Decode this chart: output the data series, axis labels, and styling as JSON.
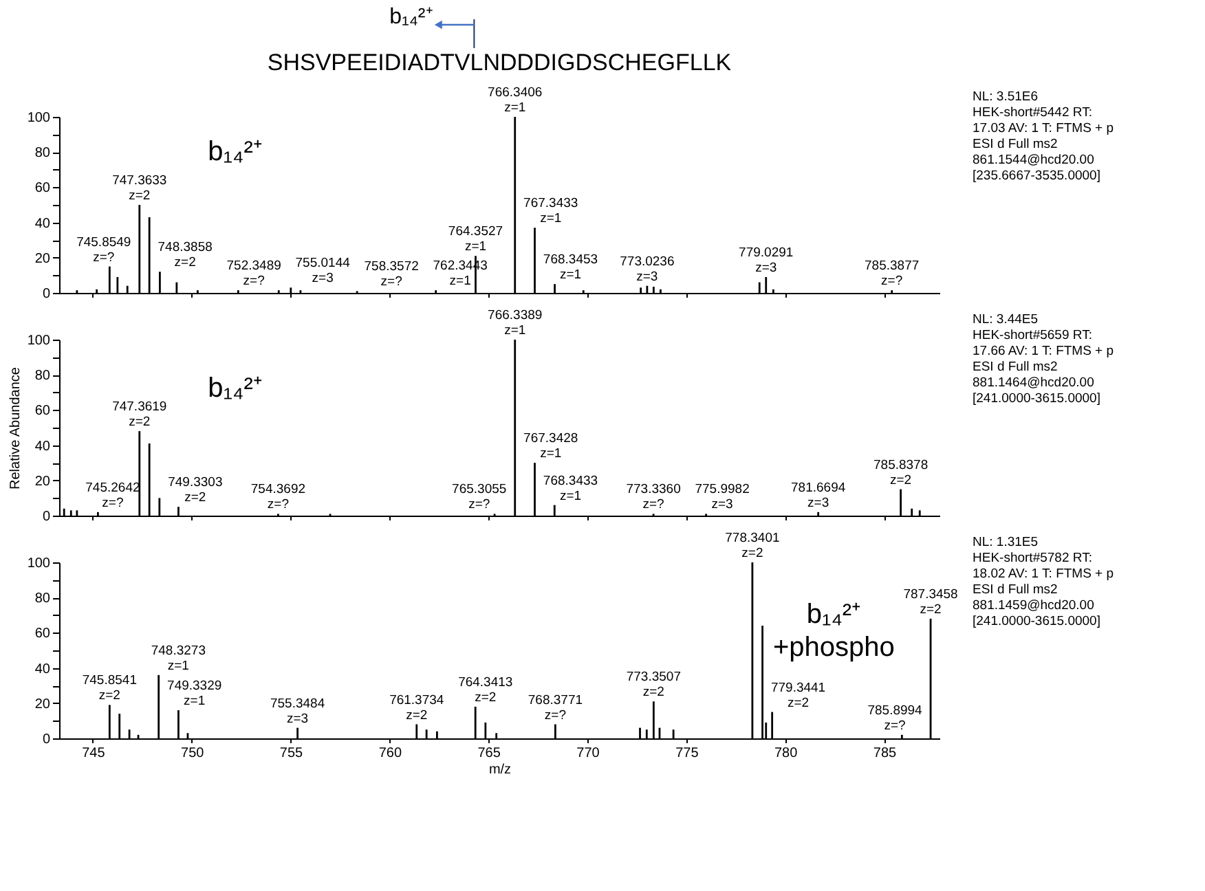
{
  "chart_data": [
    {
      "type": "bar",
      "title": "SHSVPEEIDIADTVLNDDDIGDSCHEGFLLK",
      "subtitle": "b₁₄²⁺",
      "color": "#000000",
      "grid": false,
      "tick_labels": "y",
      "xlim": [
        743.3,
        787.8
      ],
      "xticks": [
        745,
        750,
        755,
        760,
        765,
        770,
        775,
        780,
        785
      ],
      "ylim": [
        0,
        100
      ],
      "yticks": [
        0,
        {
          "value": 10,
          "label": null
        },
        20,
        {
          "value": 30,
          "label": null
        },
        40,
        {
          "value": 50,
          "label": null
        },
        60,
        {
          "value": 70,
          "label": null
        },
        80,
        {
          "value": 90,
          "label": null
        },
        100
      ],
      "x": [
        744.2,
        745.2,
        745.85,
        746.25,
        746.75,
        747.36,
        747.86,
        748.39,
        749.24,
        750.3,
        752.35,
        754.4,
        755.01,
        755.5,
        758.36,
        762.34,
        764.35,
        766.34,
        767.34,
        768.35,
        769.8,
        772.7,
        773.02,
        773.35,
        773.7,
        778.7,
        779.03,
        779.4,
        785.39
      ],
      "values": [
        1.5,
        2,
        15,
        9,
        4,
        50,
        43,
        12,
        6,
        1.5,
        1.5,
        1.5,
        3,
        1.5,
        1,
        1.5,
        21,
        100,
        37,
        5,
        1.5,
        3,
        4,
        3.5,
        2,
        6,
        9,
        2,
        1.5
      ],
      "annotations": [
        "NL: 3.51E6\nHEK-short#5442  RT:\n17.03  AV: 1 T: FTMS + p\nESI d Full ms2\n861.1544@hcd20.00\n[235.6667-3535.0000]",
        "b₁₄²⁺",
        {
          "text": "745.8549\nz=?",
          "x": 745.85,
          "y": 15
        },
        {
          "text": "747.3633\nz=2",
          "x": 747.36,
          "y": 50
        },
        {
          "text": "748.3858\nz=2",
          "x": 748.39,
          "y": 12
        },
        {
          "text": "752.3489\nz=?",
          "x": 752.35,
          "y": 1.5
        },
        {
          "text": "755.0144\nz=3",
          "x": 755.01,
          "y": 3
        },
        {
          "text": "758.3572\nz=?",
          "x": 758.36,
          "y": 1
        },
        {
          "text": "762.3443\nz=1",
          "x": 762.34,
          "y": 1.5
        },
        {
          "text": "764.3527\nz=1",
          "x": 764.35,
          "y": 21
        },
        {
          "text": "766.3406\nz=1",
          "x": 766.34,
          "y": 100
        },
        {
          "text": "767.3433\nz=1",
          "x": 767.34,
          "y": 37
        },
        {
          "text": "768.3453\nz=1",
          "x": 768.35,
          "y": 5
        },
        {
          "text": "773.0236\nz=3",
          "x": 773.02,
          "y": 4
        },
        {
          "text": "779.0291\nz=3",
          "x": 779.03,
          "y": 9
        },
        {
          "text": "785.3877\nz=?",
          "x": 785.39,
          "y": 1.5
        }
      ]
    },
    {
      "type": "bar",
      "ylabel": "Relative Abundance",
      "color": "#000000",
      "grid": false,
      "tick_labels": "y",
      "xlim": [
        743.3,
        787.8
      ],
      "xticks": [
        745,
        750,
        755,
        760,
        765,
        770,
        775,
        780,
        785
      ],
      "ylim": [
        0,
        100
      ],
      "yticks": [
        0,
        {
          "value": 10,
          "label": null
        },
        20,
        {
          "value": 30,
          "label": null
        },
        40,
        {
          "value": 50,
          "label": null
        },
        60,
        {
          "value": 70,
          "label": null
        },
        80,
        {
          "value": 90,
          "label": null
        },
        100
      ],
      "x": [
        743.55,
        743.9,
        744.2,
        745.26,
        747.36,
        747.86,
        748.37,
        749.33,
        754.37,
        757.0,
        765.31,
        766.34,
        767.34,
        768.34,
        773.34,
        776.0,
        781.67,
        785.84,
        786.4,
        786.8
      ],
      "values": [
        4,
        3,
        3,
        2,
        48,
        41,
        10,
        5,
        1,
        1,
        1,
        100,
        30,
        6,
        1,
        1,
        2,
        15,
        4,
        3
      ],
      "annotations": [
        "NL: 3.44E5\nHEK-short#5659  RT:\n17.66  AV: 1 T: FTMS + p\nESI d Full ms2\n881.1464@hcd20.00\n[241.0000-3615.0000]",
        "b₁₄²⁺",
        {
          "text": "745.2642\nz=?",
          "x": 745.26,
          "y": 2
        },
        {
          "text": "747.3619\nz=2",
          "x": 747.36,
          "y": 48
        },
        {
          "text": "749.3303\nz=2",
          "x": 749.33,
          "y": 5
        },
        {
          "text": "754.3692\nz=?",
          "x": 754.37,
          "y": 1
        },
        {
          "text": "765.3055\nz=?",
          "x": 765.31,
          "y": 1
        },
        {
          "text": "766.3389\nz=1",
          "x": 766.34,
          "y": 100
        },
        {
          "text": "767.3428\nz=1",
          "x": 767.34,
          "y": 30
        },
        {
          "text": "768.3433\nz=1",
          "x": 768.34,
          "y": 6
        },
        {
          "text": "773.3360\nz=?",
          "x": 773.34,
          "y": 1
        },
        {
          "text": "775.9982\nz=3",
          "x": 776.0,
          "y": 1
        },
        {
          "text": "781.6694\nz=3",
          "x": 781.67,
          "y": 2
        },
        {
          "text": "785.8378\nz=2",
          "x": 785.84,
          "y": 15
        }
      ]
    },
    {
      "type": "bar",
      "xlabel": "m/z",
      "color": "#000000",
      "grid": false,
      "xlim": [
        743.3,
        787.8
      ],
      "xticks": [
        745,
        750,
        755,
        760,
        765,
        770,
        775,
        780,
        785
      ],
      "ylim": [
        0,
        100
      ],
      "yticks": [
        0,
        {
          "value": 10,
          "label": null
        },
        20,
        {
          "value": 30,
          "label": null
        },
        40,
        {
          "value": 50,
          "label": null
        },
        60,
        {
          "value": 70,
          "label": null
        },
        80,
        {
          "value": 90,
          "label": null
        },
        100
      ],
      "x": [
        745.85,
        746.35,
        746.85,
        747.3,
        748.33,
        749.33,
        749.8,
        755.35,
        761.37,
        761.87,
        762.4,
        764.34,
        764.85,
        765.4,
        768.38,
        772.66,
        773.0,
        773.35,
        773.65,
        774.35,
        778.34,
        778.85,
        779.03,
        779.34,
        785.9,
        787.35
      ],
      "values": [
        19,
        14,
        5,
        2,
        36,
        16,
        3,
        6,
        8,
        5,
        4,
        18,
        9,
        3,
        8,
        6,
        5,
        21,
        6,
        5,
        100,
        64,
        9,
        15,
        2,
        68
      ],
      "annotations": [
        "NL: 1.31E5\nHEK-short#5782  RT:\n18.02  AV: 1 T: FTMS + p\nESI d Full ms2\n881.1459@hcd20.00\n[241.0000-3615.0000]",
        "b₁₄²⁺\n+phospho",
        {
          "text": "745.8541\nz=2",
          "x": 745.85,
          "y": 19
        },
        {
          "text": "748.3273\nz=1",
          "x": 748.33,
          "y": 36
        },
        {
          "text": "749.3329\nz=1",
          "x": 749.33,
          "y": 16
        },
        {
          "text": "755.3484\nz=3",
          "x": 755.35,
          "y": 6
        },
        {
          "text": "761.3734\nz=2",
          "x": 761.37,
          "y": 8
        },
        {
          "text": "764.3413\nz=2",
          "x": 764.34,
          "y": 18
        },
        {
          "text": "768.3771\nz=?",
          "x": 768.38,
          "y": 8
        },
        {
          "text": "773.3507\nz=2",
          "x": 773.35,
          "y": 21
        },
        {
          "text": "778.3401\nz=2",
          "x": 778.34,
          "y": 100
        },
        {
          "text": "779.3441\nz=2",
          "x": 779.34,
          "y": 15
        },
        {
          "text": "785.8994\nz=?",
          "x": 785.9,
          "y": 2
        },
        {
          "text": "787.3458\nz=2",
          "x": 787.35,
          "y": 68
        }
      ]
    }
  ]
}
